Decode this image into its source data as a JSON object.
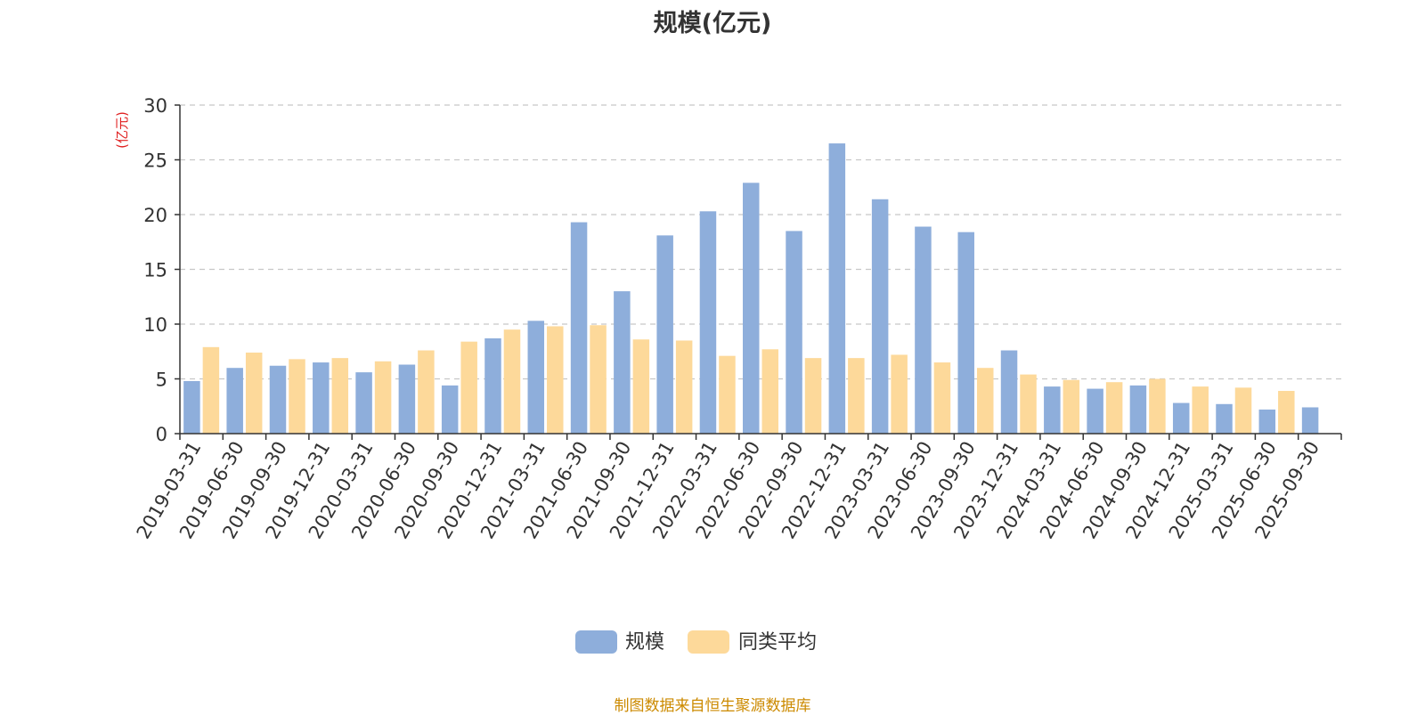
{
  "title": "规模(亿元)",
  "source_note": "制图数据来自恒生聚源数据库",
  "chart_data": {
    "type": "bar",
    "title": "规模(亿元)",
    "ylabel": "(亿元)",
    "xlabel": "",
    "ylim": [
      0,
      30
    ],
    "yticks": [
      0,
      5,
      10,
      15,
      20,
      25,
      30
    ],
    "grid": true,
    "legend_position": "bottom-center",
    "categories": [
      "2019-03-31",
      "2019-06-30",
      "2019-09-30",
      "2019-12-31",
      "2020-03-31",
      "2020-06-30",
      "2020-09-30",
      "2020-12-31",
      "2021-03-31",
      "2021-06-30",
      "2021-09-30",
      "2021-12-31",
      "2022-03-31",
      "2022-06-30",
      "2022-09-30",
      "2022-12-31",
      "2023-03-31",
      "2023-06-30",
      "2023-09-30",
      "2023-12-31",
      "2024-03-31",
      "2024-06-30",
      "2024-09-30",
      "2024-12-31",
      "2025-03-31",
      "2025-06-30",
      "2025-09-30"
    ],
    "series": [
      {
        "name": "规模",
        "color": "#8eaedb",
        "values": [
          4.8,
          6.0,
          6.2,
          6.5,
          5.6,
          6.3,
          4.4,
          8.7,
          10.3,
          19.3,
          13.0,
          18.1,
          20.3,
          22.9,
          18.5,
          26.5,
          21.4,
          18.9,
          18.4,
          7.6,
          4.3,
          4.1,
          4.4,
          2.8,
          2.7,
          2.2,
          2.4
        ]
      },
      {
        "name": "同类平均",
        "color": "#fdd99a",
        "values": [
          7.9,
          7.4,
          6.8,
          6.9,
          6.6,
          7.6,
          8.4,
          9.5,
          9.8,
          9.9,
          8.6,
          8.5,
          7.1,
          7.7,
          6.9,
          6.9,
          7.2,
          6.5,
          6.0,
          5.4,
          4.9,
          4.7,
          5.0,
          4.3,
          4.2,
          3.9,
          null
        ]
      }
    ]
  }
}
